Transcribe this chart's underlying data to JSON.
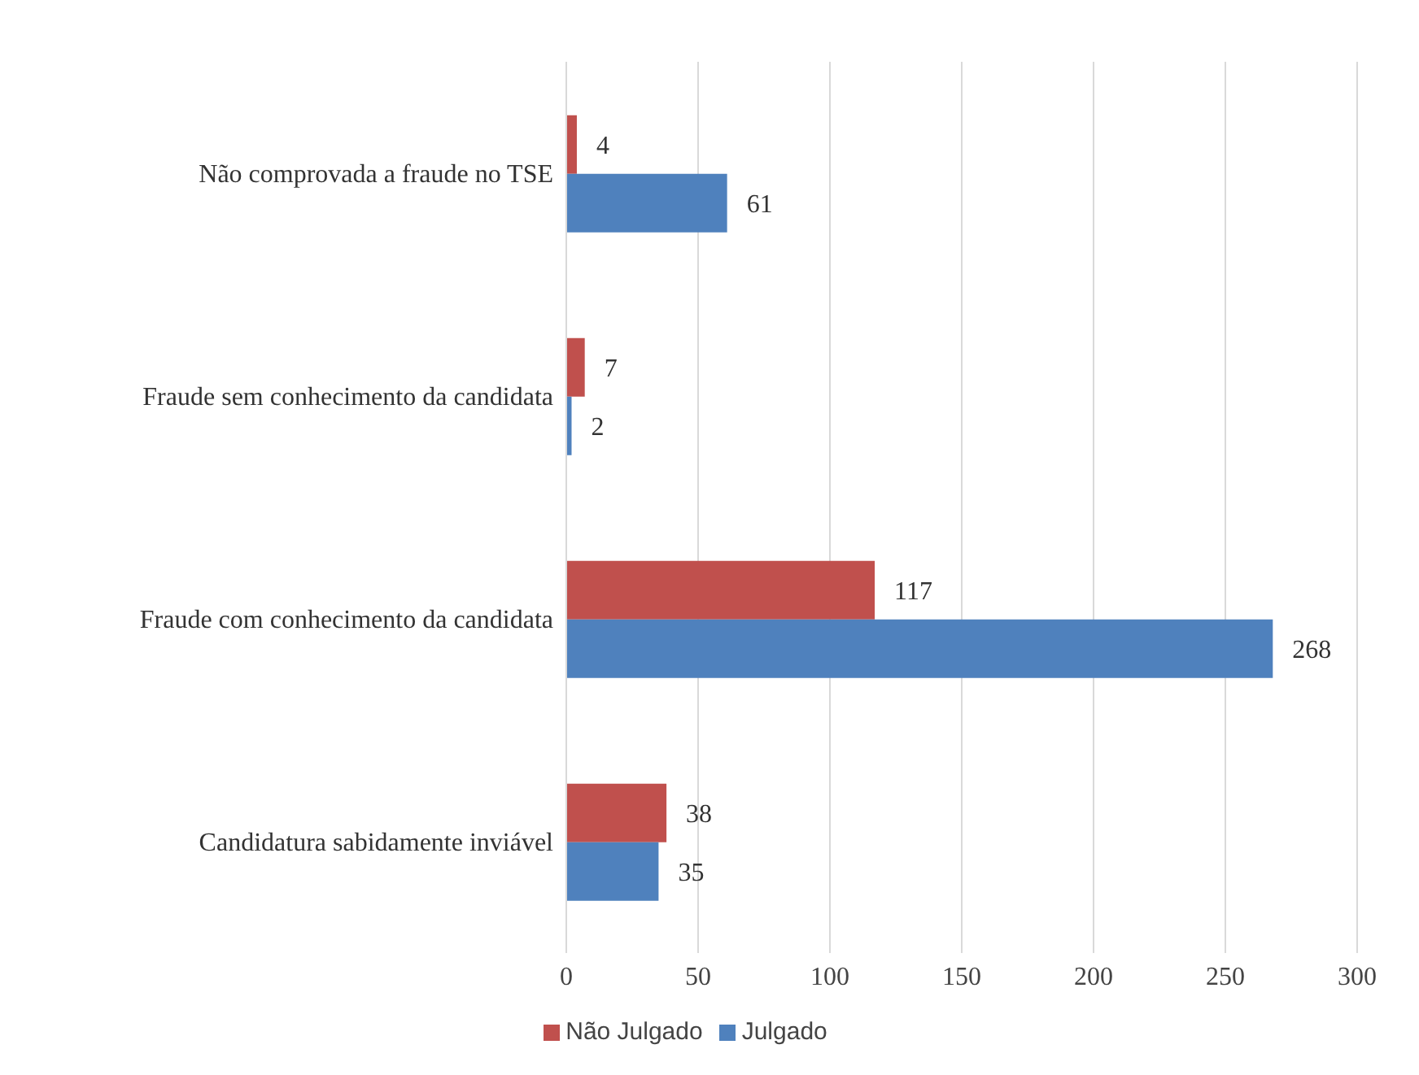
{
  "chart_data": {
    "type": "bar",
    "orientation": "horizontal",
    "categories": [
      "Não comprovada a fraude no TSE",
      "Fraude sem conhecimento da candidata",
      "Fraude com conhecimento da candidata",
      "Candidatura sabidamente inviável"
    ],
    "series": [
      {
        "name": "Não Julgado",
        "color": "#c0504d",
        "values": [
          4,
          7,
          117,
          38
        ]
      },
      {
        "name": "Julgado",
        "color": "#4f81bd",
        "values": [
          61,
          2,
          268,
          35
        ]
      }
    ],
    "xlim": [
      0,
      300
    ],
    "xticks": [
      0,
      50,
      100,
      150,
      200,
      250,
      300
    ],
    "grid": "x",
    "legend": "bottom",
    "data_labels": true
  }
}
